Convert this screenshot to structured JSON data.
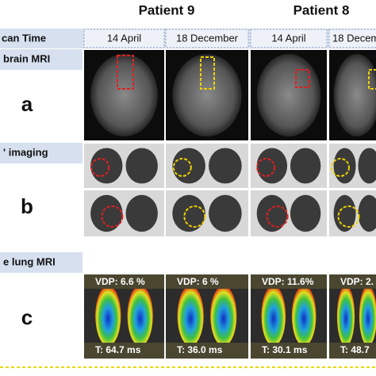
{
  "header": {
    "patients": [
      "Patient 9",
      "Patient 8"
    ]
  },
  "scan_time": {
    "label": "can Time",
    "dates": [
      "14 April",
      "18 December",
      "14 April",
      "18 Decem"
    ]
  },
  "rows": [
    {
      "label": "brain MRI",
      "letter": "a"
    },
    {
      "label": "' imaging",
      "letter": "b"
    },
    {
      "label": "e lung MRI",
      "letter": "c"
    }
  ],
  "lung_mri": {
    "vdp": [
      "VDP: 6.6 %",
      "VDP: 6 %",
      "VDP: 11.6%",
      "VDP: 2."
    ],
    "t": [
      "T: 64.7 ms",
      "T: 36.0 ms",
      "T: 30.1 ms",
      "T: 48.7"
    ]
  }
}
